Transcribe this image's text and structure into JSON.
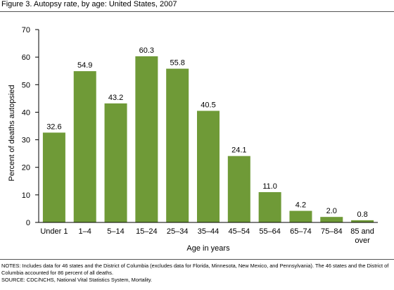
{
  "figure": {
    "title": "Figure 3. Autopsy rate, by age: United States, 2007"
  },
  "chart_data": {
    "type": "bar",
    "title": "",
    "xlabel": "Age in years",
    "ylabel": "Percent of deaths autopsied",
    "ylim": [
      0,
      70
    ],
    "yticks": [
      0,
      10,
      20,
      30,
      40,
      50,
      60,
      70
    ],
    "categories": [
      "Under 1",
      "1–4",
      "5–14",
      "15–24",
      "25–34",
      "35–44",
      "45–54",
      "55–64",
      "65–74",
      "75–84",
      "85 and over"
    ],
    "values": [
      32.6,
      54.9,
      43.2,
      60.3,
      55.8,
      40.5,
      24.1,
      11.0,
      4.2,
      2.0,
      0.8
    ],
    "value_labels": [
      "32.6",
      "54.9",
      "43.2",
      "60.3",
      "55.8",
      "40.5",
      "24.1",
      "11.0",
      "4.2",
      "2.0",
      "0.8"
    ],
    "grid": false,
    "legend": "none",
    "bar_color": "#6f9a37"
  },
  "notes": {
    "text": "NOTES: Includes data for 46 states and the District of Columbia (excludes data for Florida, Minnesota, New Mexico, and Pennsylvania). The 46 states and the District of Columbia accounted for 86 percent of all deaths.",
    "source": "SOURCE: CDC/NCHS, National Vital Statistics System, Mortality."
  }
}
